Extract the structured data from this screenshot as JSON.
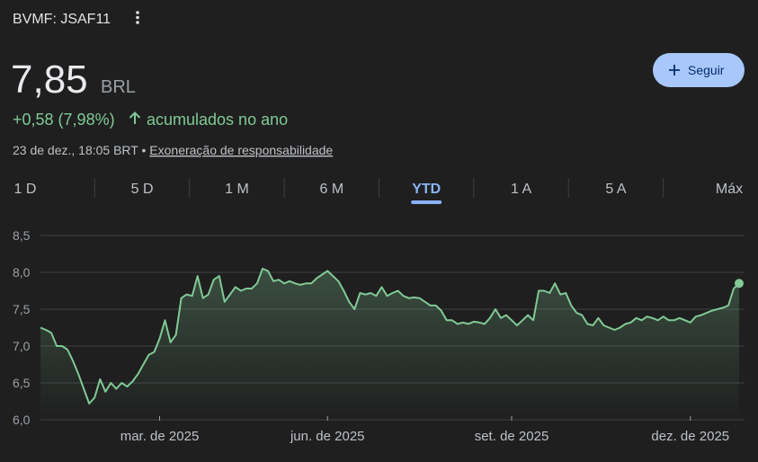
{
  "header": {
    "ticker": "BVMF: JSAF11",
    "price": "7,85",
    "currency": "BRL",
    "change": "+0,58 (7,98%)",
    "change_period": "acumulados no ano",
    "timestamp": "23 de dez., 18:05 BRT",
    "separator": "•",
    "disclaimer": "Exoneração de responsabilidade",
    "follow_button": "Seguir"
  },
  "tabs": [
    "1 D",
    "5 D",
    "1 M",
    "6 M",
    "YTD",
    "1 A",
    "5 A",
    "Máx"
  ],
  "selected_tab": "YTD",
  "chart_data": {
    "type": "area",
    "color": "#81c995",
    "grid": true,
    "ylim": [
      6.0,
      8.5
    ],
    "yticks": [
      {
        "value": 6.0,
        "label": "6,0"
      },
      {
        "value": 6.5,
        "label": "6,5"
      },
      {
        "value": 7.0,
        "label": "7,0"
      },
      {
        "value": 7.5,
        "label": "7,5"
      },
      {
        "value": 8.0,
        "label": "8,0"
      },
      {
        "value": 8.5,
        "label": "8,5"
      }
    ],
    "xlim": [
      0,
      129
    ],
    "xticks": [
      {
        "value": 22,
        "label": "mar. de 2025"
      },
      {
        "value": 53,
        "label": "jun. de 2025"
      },
      {
        "value": 87,
        "label": "set. de 2025"
      },
      {
        "value": 120,
        "label": "dez. de 2025"
      }
    ],
    "categories": [
      null,
      null,
      null,
      null,
      null,
      null,
      null,
      null,
      null,
      null,
      null,
      null,
      null,
      null,
      null,
      null,
      null,
      null,
      null,
      null,
      null,
      null,
      null,
      null,
      null,
      null,
      null,
      null,
      null,
      null,
      null,
      null,
      null,
      null,
      null,
      null,
      null,
      null,
      null,
      null,
      null,
      null,
      null,
      null,
      null,
      null,
      null,
      null,
      null,
      null,
      null,
      null,
      null,
      null,
      null,
      null,
      null,
      null,
      null,
      null,
      null,
      null,
      null,
      null,
      null,
      null,
      null,
      null,
      null,
      null,
      null,
      null,
      null,
      null,
      null,
      null,
      null,
      null,
      null,
      null,
      null,
      null,
      null,
      null,
      null,
      null,
      null,
      null,
      null,
      null,
      null,
      null,
      null,
      null,
      null,
      null,
      null,
      null,
      null,
      null,
      null,
      null,
      null,
      null,
      null,
      null,
      null,
      null,
      null,
      null,
      null,
      null,
      null,
      null,
      null,
      null,
      null,
      null,
      null,
      null,
      null,
      null,
      null,
      null,
      null,
      null,
      null,
      null,
      null,
      null
    ],
    "values": [
      7.25,
      7.22,
      7.18,
      7.0,
      7.0,
      6.95,
      6.8,
      6.62,
      6.42,
      6.22,
      6.3,
      6.55,
      6.38,
      6.5,
      6.42,
      6.5,
      6.45,
      6.52,
      6.62,
      6.75,
      6.88,
      6.92,
      7.1,
      7.35,
      7.05,
      7.15,
      7.65,
      7.7,
      7.68,
      7.95,
      7.65,
      7.7,
      7.9,
      7.95,
      7.6,
      7.7,
      7.8,
      7.75,
      7.78,
      7.78,
      7.85,
      8.05,
      8.02,
      7.88,
      7.9,
      7.85,
      7.88,
      7.85,
      7.83,
      7.85,
      7.85,
      7.92,
      7.97,
      8.02,
      7.95,
      7.88,
      7.75,
      7.6,
      7.5,
      7.72,
      7.7,
      7.72,
      7.68,
      7.8,
      7.68,
      7.72,
      7.75,
      7.68,
      7.65,
      7.66,
      7.65,
      7.6,
      7.55,
      7.55,
      7.48,
      7.35,
      7.35,
      7.3,
      7.32,
      7.3,
      7.33,
      7.32,
      7.3,
      7.38,
      7.5,
      7.38,
      7.42,
      7.35,
      7.28,
      7.35,
      7.42,
      7.35,
      7.75,
      7.75,
      7.72,
      7.85,
      7.7,
      7.72,
      7.55,
      7.45,
      7.42,
      7.3,
      7.28,
      7.38,
      7.28,
      7.25,
      7.22,
      7.25,
      7.3,
      7.32,
      7.38,
      7.35,
      7.4,
      7.38,
      7.35,
      7.4,
      7.35,
      7.35,
      7.38,
      7.35,
      7.32,
      7.4,
      7.42,
      7.45,
      7.48,
      7.5,
      7.52,
      7.55,
      7.78,
      7.85
    ]
  }
}
